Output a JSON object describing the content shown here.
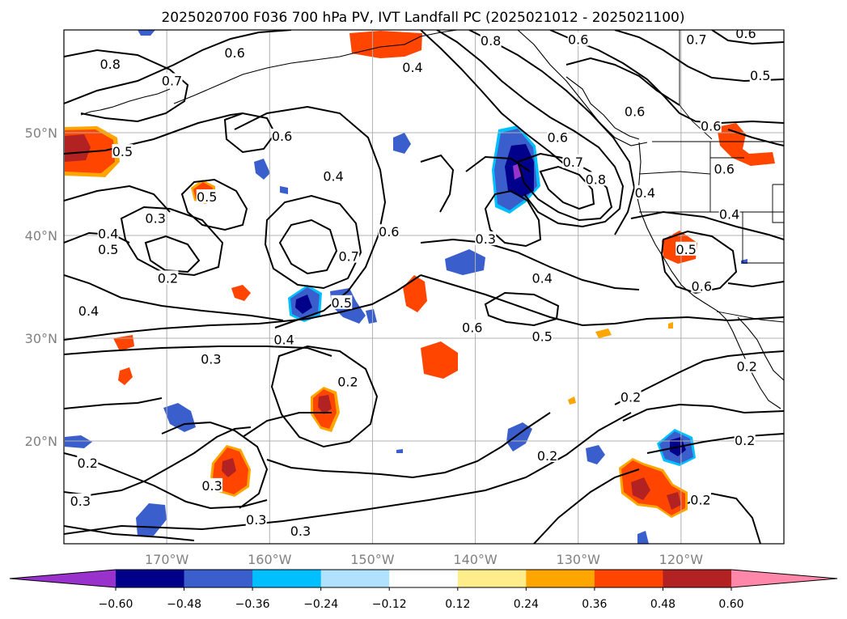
{
  "title": "2025020700 F036 700 hPa PV, IVT Landfall PC (2025021012 - 2025021100)",
  "lon_ticks": [
    {
      "lon": -170,
      "label": "170°W"
    },
    {
      "lon": -160,
      "label": "160°W"
    },
    {
      "lon": -150,
      "label": "150°W"
    },
    {
      "lon": -140,
      "label": "140°W"
    },
    {
      "lon": -130,
      "label": "130°W"
    },
    {
      "lon": -120,
      "label": "120°W"
    }
  ],
  "lat_ticks": [
    {
      "lat": 20,
      "label": "20°N"
    },
    {
      "lat": 30,
      "label": "30°N"
    },
    {
      "lat": 40,
      "label": "40°N"
    },
    {
      "lat": 50,
      "label": "50°N"
    }
  ],
  "extent": {
    "lon_min": -180,
    "lon_max": -110,
    "lat_min": 10,
    "lat_max": 60
  },
  "colorbar": {
    "boundaries": [
      -0.6,
      -0.48,
      -0.36,
      -0.24,
      -0.12,
      0.12,
      0.24,
      0.36,
      0.48,
      0.6
    ],
    "tick_labels": [
      "−0.60",
      "−0.48",
      "−0.36",
      "−0.24",
      "−0.12",
      "0.12",
      "0.24",
      "0.36",
      "0.48",
      "0.60"
    ],
    "colors": [
      "#9932cc",
      "#00008b",
      "#3a5fcd",
      "#00bfff",
      "#b0e2ff",
      "#ffffff",
      "#ffec8b",
      "#ffa500",
      "#ff4500",
      "#b22222",
      "#ff88aa"
    ],
    "extend": "both"
  },
  "contour_labels": [
    {
      "text": "0.8",
      "lon": -175.5,
      "lat": 56.6
    },
    {
      "text": "0.7",
      "lon": -169.5,
      "lat": 55.0
    },
    {
      "text": "0.6",
      "lon": -163.4,
      "lat": 57.7
    },
    {
      "text": "0.6",
      "lon": -158.8,
      "lat": 49.6
    },
    {
      "text": "0.5",
      "lon": -174.3,
      "lat": 48.1
    },
    {
      "text": "0.5",
      "lon": -166.1,
      "lat": 43.7
    },
    {
      "text": "0.4",
      "lon": -153.8,
      "lat": 45.7
    },
    {
      "text": "0.6",
      "lon": -148.4,
      "lat": 40.3
    },
    {
      "text": "0.7",
      "lon": -152.3,
      "lat": 37.9
    },
    {
      "text": "0.3",
      "lon": -171.1,
      "lat": 41.6
    },
    {
      "text": "0.4",
      "lon": -175.7,
      "lat": 40.1
    },
    {
      "text": "0.5",
      "lon": -175.7,
      "lat": 38.6
    },
    {
      "text": "0.2",
      "lon": -169.9,
      "lat": 35.8
    },
    {
      "text": "0.4",
      "lon": -177.6,
      "lat": 32.6
    },
    {
      "text": "0.5",
      "lon": -153.0,
      "lat": 33.4
    },
    {
      "text": "0.4",
      "lon": -158.6,
      "lat": 29.8
    },
    {
      "text": "0.3",
      "lon": -165.7,
      "lat": 27.9
    },
    {
      "text": "0.2",
      "lon": -152.4,
      "lat": 25.7
    },
    {
      "text": "0.2",
      "lon": -177.7,
      "lat": 17.8
    },
    {
      "text": "0.3",
      "lon": -165.6,
      "lat": 15.6
    },
    {
      "text": "0.3",
      "lon": -178.4,
      "lat": 14.1
    },
    {
      "text": "0.3",
      "lon": -161.3,
      "lat": 12.3
    },
    {
      "text": "0.3",
      "lon": -157.0,
      "lat": 11.2
    },
    {
      "text": "0.4",
      "lon": -146.1,
      "lat": 56.3
    },
    {
      "text": "0.8",
      "lon": -138.5,
      "lat": 58.9
    },
    {
      "text": "0.6",
      "lon": -130.0,
      "lat": 59.0
    },
    {
      "text": "0.7",
      "lon": -118.5,
      "lat": 59.0
    },
    {
      "text": "0.6",
      "lon": -113.7,
      "lat": 59.6
    },
    {
      "text": "0.5",
      "lon": -112.3,
      "lat": 55.5
    },
    {
      "text": "0.6",
      "lon": -124.5,
      "lat": 52.0
    },
    {
      "text": "0.6",
      "lon": -117.1,
      "lat": 50.6
    },
    {
      "text": "0.6",
      "lon": -115.8,
      "lat": 46.4
    },
    {
      "text": "0.4",
      "lon": -123.5,
      "lat": 44.1
    },
    {
      "text": "0.4",
      "lon": -115.3,
      "lat": 42.0
    },
    {
      "text": "0.6",
      "lon": -132.0,
      "lat": 49.5
    },
    {
      "text": "0.7",
      "lon": -130.5,
      "lat": 47.1
    },
    {
      "text": "0.8",
      "lon": -128.3,
      "lat": 45.4
    },
    {
      "text": "0.3",
      "lon": -139.0,
      "lat": 39.6
    },
    {
      "text": "0.4",
      "lon": -133.5,
      "lat": 35.8
    },
    {
      "text": "0.6",
      "lon": -140.3,
      "lat": 31.0
    },
    {
      "text": "0.5",
      "lon": -133.5,
      "lat": 30.1
    },
    {
      "text": "0.5",
      "lon": -119.5,
      "lat": 38.6
    },
    {
      "text": "0.6",
      "lon": -118.0,
      "lat": 35.0
    },
    {
      "text": "0.2",
      "lon": -113.6,
      "lat": 27.2
    },
    {
      "text": "0.2",
      "lon": -124.9,
      "lat": 24.2
    },
    {
      "text": "0.2",
      "lon": -133.0,
      "lat": 18.5
    },
    {
      "text": "0.2",
      "lon": -113.8,
      "lat": 20.0
    },
    {
      "text": "0.2",
      "lon": -118.1,
      "lat": 14.2
    }
  ]
}
